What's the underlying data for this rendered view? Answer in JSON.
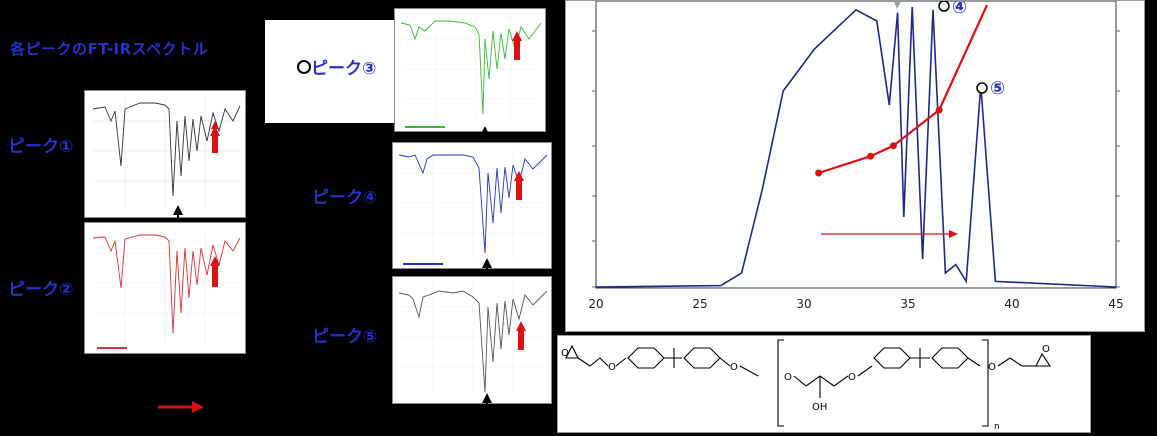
{
  "title": "各ピークのFT-IRスペクトル",
  "peaks": {
    "p1": "ピーク①",
    "p2": "ピーク②",
    "p3": "ピーク③",
    "p4": "ピーク④",
    "p5": "ピーク⑤"
  },
  "chromatogram": {
    "marker4": "④",
    "marker5": "⑤",
    "x_ticks": [
      "20",
      "25",
      "30",
      "35",
      "40",
      "45"
    ]
  },
  "structure": {
    "oh": "OH",
    "n": "n"
  },
  "colors": {
    "label_blue": "#2233cc",
    "trace_blue": "#1c2a8c",
    "red": "#dd1111",
    "spec1": "#333333",
    "spec2": "#e03030",
    "spec3": "#33bb33",
    "spec4": "#2233cc",
    "spec5": "#555555"
  },
  "chart_data": {
    "type": "line",
    "x_range": [
      20,
      45
    ],
    "series": [
      {
        "values": [
          {
            "x": 20,
            "y": 0
          },
          {
            "x": 26,
            "y": 0.5
          },
          {
            "x": 27,
            "y": 5
          },
          {
            "x": 28,
            "y": 35
          },
          {
            "x": 29,
            "y": 70
          },
          {
            "x": 30.5,
            "y": 85
          },
          {
            "x": 31.5,
            "y": 92
          },
          {
            "x": 32.5,
            "y": 99
          },
          {
            "x": 33.5,
            "y": 95
          },
          {
            "x": 34.1,
            "y": 65
          },
          {
            "x": 34.5,
            "y": 98
          },
          {
            "x": 34.8,
            "y": 25
          },
          {
            "x": 35.2,
            "y": 100
          },
          {
            "x": 35.7,
            "y": 10
          },
          {
            "x": 36.2,
            "y": 99
          },
          {
            "x": 36.8,
            "y": 5
          },
          {
            "x": 37.3,
            "y": 8
          },
          {
            "x": 37.8,
            "y": 2
          },
          {
            "x": 38.5,
            "y": 72
          },
          {
            "x": 39.2,
            "y": 2
          },
          {
            "x": 45,
            "y": 0
          }
        ]
      },
      {
        "values": [
          {
            "x": 30.7,
            "y": 0.2
          },
          {
            "x": 33.2,
            "y": 0.28
          },
          {
            "x": 34.3,
            "y": 0.33
          },
          {
            "x": 36.5,
            "y": 0.5
          },
          {
            "x": 38.8,
            "y": 1.0
          }
        ]
      }
    ]
  }
}
